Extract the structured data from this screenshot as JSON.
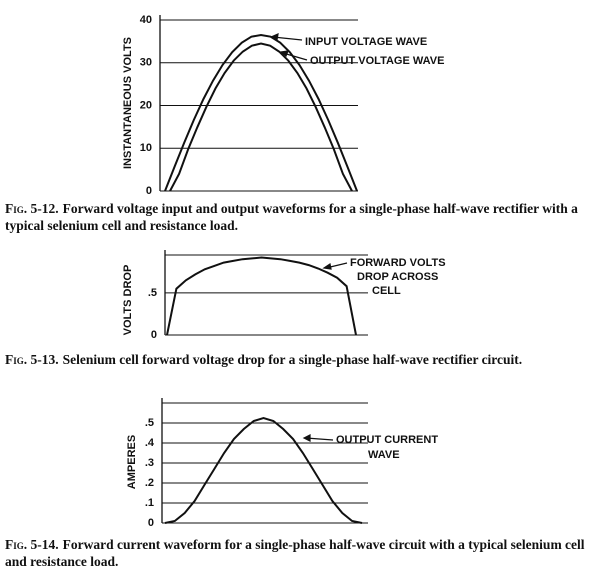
{
  "chart_data": [
    {
      "type": "line",
      "ylabel": "INSTANTANEOUS VOLTS",
      "categories": [
        null,
        null,
        null,
        null,
        null,
        null,
        null,
        null,
        null,
        null,
        null,
        null,
        null,
        null,
        null,
        null,
        null,
        null,
        null,
        null,
        null
      ],
      "series": [
        {
          "name": "INPUT VOLTAGE WAVE",
          "color": "#111",
          "values": [
            0,
            5.7,
            11.3,
            16.6,
            21.5,
            25.8,
            29.5,
            32.5,
            34.7,
            36.1,
            36.5,
            36.1,
            34.7,
            32.5,
            29.5,
            25.8,
            21.5,
            16.6,
            11.3,
            5.7,
            0
          ]
        },
        {
          "name": "OUTPUT VOLTAGE WAVE",
          "color": "#111",
          "values": [
            0,
            4.0,
            9.8,
            14.9,
            19.7,
            24.0,
            27.6,
            30.5,
            32.6,
            34.0,
            34.5,
            34.0,
            32.6,
            30.5,
            27.6,
            24.0,
            19.7,
            14.9,
            9.8,
            4.0,
            0
          ]
        }
      ],
      "ylim": [
        0,
        40
      ],
      "yticks": [
        0,
        10,
        20,
        30,
        40
      ],
      "grid": true,
      "caption_label": "Fig. 5-12.",
      "caption": "Forward voltage input and output waveforms for a single-phase half-wave rectifier with a typical selenium cell and resistance load."
    },
    {
      "type": "line",
      "ylabel": "VOLTS DROP",
      "categories": [
        null,
        null,
        null,
        null,
        null,
        null,
        null,
        null,
        null,
        null,
        null,
        null,
        null,
        null,
        null,
        null,
        null,
        null,
        null,
        null,
        null
      ],
      "series": [
        {
          "name": "FORWARD VOLTS DROP ACROSS CELL",
          "color": "#111",
          "values": [
            0,
            0.55,
            0.65,
            0.72,
            0.78,
            0.82,
            0.86,
            0.88,
            0.9,
            0.91,
            0.92,
            0.91,
            0.9,
            0.88,
            0.86,
            0.83,
            0.79,
            0.74,
            0.68,
            0.58,
            0
          ]
        }
      ],
      "annotations": [
        "FORWARD VOLTS",
        "DROP ACROSS",
        "CELL"
      ],
      "ylim": [
        0,
        0.95
      ],
      "yticks": [
        0,
        {
          "value": 0.5,
          "label": ".5"
        }
      ],
      "grid": true,
      "caption_label": "Fig. 5-13.",
      "caption": "Selenium cell forward voltage drop for a single-phase half-wave rectifier circuit."
    },
    {
      "type": "line",
      "ylabel": "AMPERES",
      "categories": [
        null,
        null,
        null,
        null,
        null,
        null,
        null,
        null,
        null,
        null,
        null,
        null,
        null,
        null,
        null,
        null,
        null,
        null,
        null,
        null,
        null
      ],
      "series": [
        {
          "name": "OUTPUT CURRENT WAVE",
          "color": "#111",
          "values": [
            0,
            0.01,
            0.05,
            0.11,
            0.19,
            0.27,
            0.35,
            0.42,
            0.47,
            0.51,
            0.525,
            0.51,
            0.47,
            0.42,
            0.35,
            0.27,
            0.19,
            0.11,
            0.05,
            0.01,
            0
          ]
        }
      ],
      "annotations": [
        "OUTPUT CURRENT",
        "WAVE"
      ],
      "ylim": [
        0,
        0.6
      ],
      "yticks": [
        0,
        {
          "value": 0.1,
          "label": ".1"
        },
        {
          "value": 0.2,
          "label": ".2"
        },
        {
          "value": 0.3,
          "label": ".3"
        },
        {
          "value": 0.4,
          "label": ".4"
        },
        {
          "value": 0.5,
          "label": ".5"
        }
      ],
      "grid": true,
      "caption_label": "Fig. 5-14.",
      "caption": "Forward current waveform for a single-phase half-wave circuit with a typical selenium cell and resistance load."
    }
  ]
}
